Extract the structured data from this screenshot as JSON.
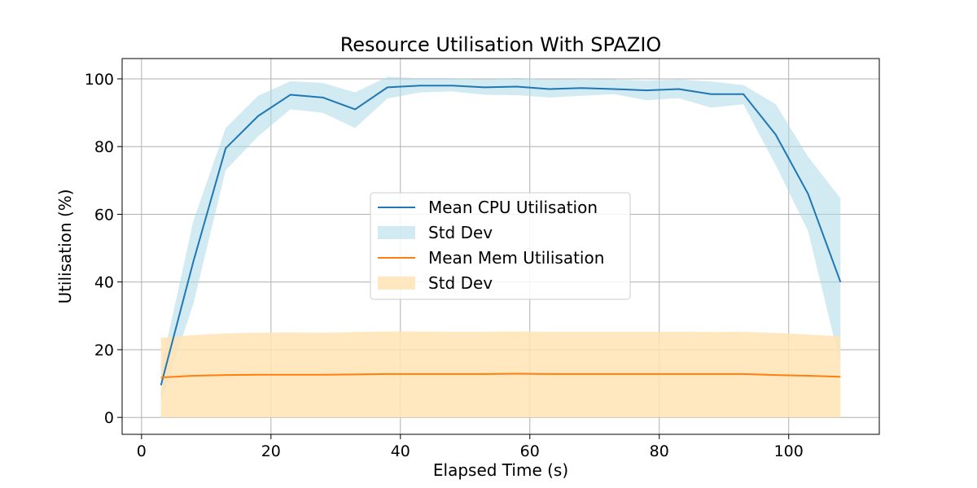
{
  "chart_data": {
    "type": "line",
    "title": "Resource Utilisation With SPAZIO",
    "xlabel": "Elapsed Time (s)",
    "ylabel": "Utilisation (%)",
    "xlim": [
      -3,
      114
    ],
    "ylim": [
      -5,
      106
    ],
    "x_ticks": [
      0,
      20,
      40,
      60,
      80,
      100
    ],
    "y_ticks": [
      0,
      20,
      40,
      60,
      80,
      100
    ],
    "grid": true,
    "legend_position": "center-right",
    "x": [
      3,
      8,
      13,
      18,
      23,
      28,
      33,
      38,
      43,
      48,
      53,
      58,
      63,
      68,
      73,
      78,
      83,
      88,
      93,
      98,
      103,
      108
    ],
    "series": [
      {
        "name": "Mean CPU Utilisation",
        "band_name": "Std Dev",
        "color": "#1f77b4",
        "band_color": "#add8e6",
        "mean": [
          9.5,
          46,
          79.5,
          89,
          95.3,
          94.5,
          91,
          97.5,
          98,
          98,
          97.5,
          97.7,
          97,
          97.3,
          97,
          96.6,
          97,
          95.5,
          95.5,
          83.5,
          66,
          40
        ],
        "upper": [
          14.5,
          58,
          85.5,
          95,
          99.3,
          98.8,
          96,
          100.6,
          100.2,
          100.2,
          99.8,
          100.3,
          99.8,
          100,
          99.8,
          99.5,
          99.8,
          99.2,
          98.2,
          92.5,
          77,
          64.7
        ],
        "lower": [
          4.5,
          33.5,
          73,
          83,
          91,
          90,
          85.5,
          94.2,
          96,
          96.3,
          95.3,
          95.2,
          94.5,
          95,
          95.5,
          93.7,
          94.3,
          91.5,
          92.5,
          74.5,
          55,
          15.5
        ]
      },
      {
        "name": "Mean Mem Utilisation",
        "band_name": "Std Dev",
        "color": "#ff7f0e",
        "band_color": "#ffe4b5",
        "mean": [
          11.8,
          12.3,
          12.5,
          12.6,
          12.6,
          12.6,
          12.7,
          12.8,
          12.8,
          12.8,
          12.8,
          12.9,
          12.8,
          12.8,
          12.8,
          12.8,
          12.8,
          12.8,
          12.8,
          12.5,
          12.3,
          12
        ],
        "upper": [
          23.5,
          24.3,
          24.8,
          25,
          25.1,
          25,
          25.2,
          25.4,
          25.4,
          25.3,
          25.3,
          25.4,
          25.3,
          25.3,
          25.3,
          25.3,
          25.3,
          25.2,
          25.3,
          24.9,
          24.5,
          23.9
        ],
        "lower": [
          0,
          0,
          0,
          0,
          0,
          0,
          0,
          0,
          0,
          0,
          0,
          0,
          0,
          0,
          0,
          0,
          0,
          0,
          0,
          0,
          0,
          0
        ]
      }
    ],
    "legend": [
      {
        "label": "Mean CPU Utilisation",
        "kind": "line",
        "color": "#1f77b4"
      },
      {
        "label": "Std Dev",
        "kind": "band",
        "color": "#add8e6"
      },
      {
        "label": "Mean Mem Utilisation",
        "kind": "line",
        "color": "#ff7f0e"
      },
      {
        "label": "Std Dev",
        "kind": "band",
        "color": "#ffe4b5"
      }
    ]
  }
}
